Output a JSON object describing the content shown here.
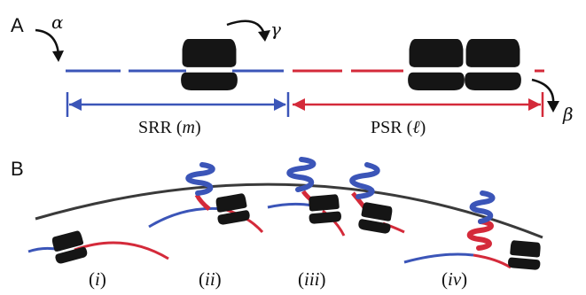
{
  "panels": {
    "a": {
      "label": "A"
    },
    "b": {
      "label": "B"
    }
  },
  "rates": {
    "alpha": "α",
    "beta": "β",
    "gamma": "γ"
  },
  "regions": {
    "srr": {
      "name": "SRR",
      "param": "m"
    },
    "psr": {
      "name": "PSR",
      "param": "ℓ"
    }
  },
  "stages": [
    "i",
    "ii",
    "iii",
    "iv"
  ],
  "colors": {
    "srr": "#3b55b8",
    "psr": "#d42a3a",
    "ribosome": "#151515",
    "membrane": "#3a3a3a"
  }
}
